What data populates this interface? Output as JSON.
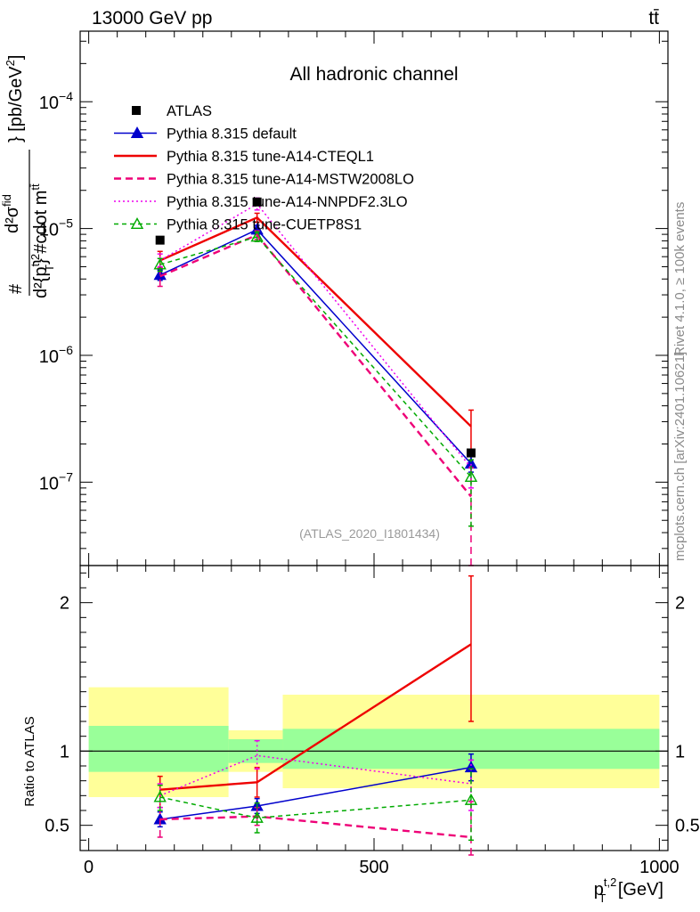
{
  "header": {
    "beam": "13000 GeV pp",
    "process": "tt̄"
  },
  "side_labels": {
    "rivet": "Rivet 4.1.0, ≥ 100k events",
    "mcplots": "mcplots.cern.ch [arXiv:2401.10621]"
  },
  "chart_data": [
    {
      "type": "line",
      "title": "All hadronic channel",
      "analysis_label": "(ATLAS_2020_I1801434)",
      "yscale": "log",
      "ylabel_parts": {
        "num": "d²σ",
        "num_sup": "fid",
        "hash": "#",
        "den_pre": "d²{p",
        "den_sup": "t,2",
        "den_sub": "T",
        "den_post": "} #cdot m",
        "den_msup": "tt̄",
        "unit_a": "} [pb/GeV",
        "unit_sup": "2",
        "unit_b": "]"
      },
      "xlim": [
        -15,
        1015
      ],
      "ylim": [
        2.2e-08,
        0.00036
      ],
      "yticks": [
        {
          "v": 1e-07,
          "base": "10",
          "exp": "−7"
        },
        {
          "v": 1e-06,
          "base": "10",
          "exp": "−6"
        },
        {
          "v": 1e-05,
          "base": "10",
          "exp": "−5"
        },
        {
          "v": 0.0001,
          "base": "10",
          "exp": "−4"
        }
      ],
      "x": [
        125,
        295,
        670
      ],
      "data": {
        "name": "ATLAS",
        "values": [
          8.1e-06,
          1.62e-05,
          1.7e-07
        ]
      },
      "series": [
        {
          "name": "Pythia 8.315 default",
          "color": "#0000cc",
          "dash": "",
          "marker": "triangle-filled",
          "values": [
            4.3e-06,
            9.8e-06,
            1.4e-07
          ],
          "err_lo": [
            3.9e-06,
            9e-06,
            1.2e-07
          ],
          "err_hi": [
            4.7e-06,
            1.06e-05,
            1.6e-07
          ]
        },
        {
          "name": "Pythia 8.315 tune-A14-CTEQL1",
          "color": "#ee0000",
          "dash": "",
          "marker": "",
          "values": [
            5.6e-06,
            1.22e-05,
            2.75e-07
          ],
          "err_lo": [
            4.9e-06,
            1.12e-05,
            1.8e-07
          ],
          "err_hi": [
            6.6e-06,
            1.32e-05,
            3.7e-07
          ]
        },
        {
          "name": "Pythia 8.315 tune-A14-MSTW2008LO",
          "color": "#ee0077",
          "dash": "8,5",
          "marker": "",
          "values": [
            4.2e-06,
            8.9e-06,
            7.7e-08
          ],
          "err_lo": [
            3.5e-06,
            8.2e-06,
            2.2e-08
          ],
          "err_hi": [
            4.9e-06,
            9.6e-06,
            1.3e-07
          ]
        },
        {
          "name": "Pythia 8.315 tune-A14-NNPDF2.3LO",
          "color": "#ee00ee",
          "dash": "2,3",
          "marker": "",
          "values": [
            5.6e-06,
            1.56e-05,
            1.3e-07
          ],
          "err_lo": [
            5e-06,
            1.4e-05,
            9e-08
          ],
          "err_hi": [
            6.3e-06,
            1.74e-05,
            1.7e-07
          ]
        },
        {
          "name": "Pythia 8.315 tune-CUETP8S1",
          "color": "#00aa00",
          "dash": "5,4",
          "marker": "triangle-open",
          "values": [
            5.2e-06,
            8.6e-06,
            1.1e-07
          ],
          "err_lo": [
            4.6e-06,
            7.9e-06,
            4.5e-08
          ],
          "err_hi": [
            5.8e-06,
            9.4e-06,
            1.5e-07
          ]
        }
      ]
    },
    {
      "type": "line",
      "ylabel": "Ratio to ATLAS",
      "xlabel_parts": {
        "p": "p",
        "sup": "t,2",
        "sub": "T",
        "unit": " [GeV]"
      },
      "xlim": [
        -15,
        1015
      ],
      "ylim": [
        0.33,
        2.25
      ],
      "xticks": [
        0,
        500,
        1000
      ],
      "yticks": [
        0.5,
        1,
        2
      ],
      "reference": 1,
      "bands": [
        {
          "x0": 0,
          "x1": 245,
          "inner": [
            0.86,
            1.17
          ],
          "outer": [
            0.69,
            1.43
          ]
        },
        {
          "x0": 245,
          "x1": 340,
          "inner": [
            0.92,
            1.08
          ],
          "outer": [
            0.86,
            1.14
          ]
        },
        {
          "x0": 340,
          "x1": 1000,
          "inner": [
            0.88,
            1.15
          ],
          "outer": [
            0.75,
            1.38
          ]
        }
      ],
      "x": [
        125,
        295,
        670
      ],
      "series": [
        {
          "name": "Pythia 8.315 default",
          "color": "#0000cc",
          "dash": "",
          "marker": "triangle-filled",
          "values": [
            0.54,
            0.63,
            0.89
          ],
          "err_lo": [
            0.49,
            0.58,
            0.8
          ],
          "err_hi": [
            0.59,
            0.68,
            0.98
          ]
        },
        {
          "name": "Pythia 8.315 tune-A14-CTEQL1",
          "color": "#ee0000",
          "dash": "",
          "marker": "",
          "values": [
            0.74,
            0.79,
            1.72
          ],
          "err_lo": [
            0.62,
            0.69,
            1.2
          ],
          "err_hi": [
            0.83,
            0.89,
            2.18
          ]
        },
        {
          "name": "Pythia 8.315 tune-A14-MSTW2008LO",
          "color": "#ee0077",
          "dash": "8,5",
          "marker": "",
          "values": [
            0.54,
            0.56,
            0.42
          ],
          "err_lo": [
            0.42,
            0.5,
            0.3
          ],
          "err_hi": [
            0.62,
            0.62,
            0.66
          ]
        },
        {
          "name": "Pythia 8.315 tune-A14-NNPDF2.3LO",
          "color": "#ee00ee",
          "dash": "2,3",
          "marker": "",
          "values": [
            0.7,
            0.97,
            0.78
          ],
          "err_lo": [
            0.62,
            0.88,
            0.6
          ],
          "err_hi": [
            0.78,
            1.07,
            0.94
          ]
        },
        {
          "name": "Pythia 8.315 tune-CUETP8S1",
          "color": "#00aa00",
          "dash": "5,4",
          "marker": "triangle-open",
          "values": [
            0.69,
            0.55,
            0.67
          ],
          "err_lo": [
            0.6,
            0.45,
            0.4
          ],
          "err_hi": [
            0.77,
            0.65,
            0.88
          ]
        }
      ]
    }
  ]
}
